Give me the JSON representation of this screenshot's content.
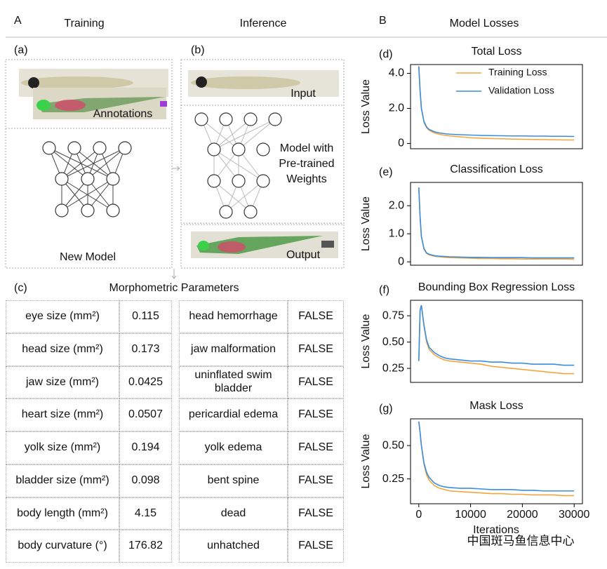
{
  "header": {
    "a": "A",
    "training": "Training",
    "inference": "Inference",
    "b": "B",
    "model_losses": "Model Losses"
  },
  "diagram": {
    "a": "(a)",
    "b": "(b)",
    "annotations": "Annotations",
    "new_model": "New Model",
    "input": "Input",
    "model_weights": [
      "Model with",
      "Pre-trained",
      "Weights"
    ],
    "output": "Output"
  },
  "table": {
    "label": "(c)",
    "title": "Morphometric Parameters",
    "rows": [
      [
        "eye size (mm²)",
        "0.115",
        "head hemorrhage",
        "FALSE"
      ],
      [
        "head size (mm²)",
        "0.173",
        "jaw malformation",
        "FALSE"
      ],
      [
        "jaw size (mm²)",
        "0.0425",
        "uninflated swim bladder",
        "FALSE"
      ],
      [
        "heart size (mm²)",
        "0.0507",
        "pericardial edema",
        "FALSE"
      ],
      [
        "yolk size (mm²)",
        "0.194",
        "yolk edema",
        "FALSE"
      ],
      [
        "bladder size (mm²)",
        "0.098",
        "bent spine",
        "FALSE"
      ],
      [
        "body length (mm²)",
        "4.15",
        "dead",
        "FALSE"
      ],
      [
        "body curvature (°)",
        "176.82",
        "unhatched",
        "FALSE"
      ]
    ]
  },
  "watermark": "中国斑马鱼信息中心",
  "chart_data": [
    {
      "type": "line",
      "panel": "(d)",
      "title": "Total Loss",
      "ylabel": "Loss Value",
      "legend": "upper right",
      "x": [
        0,
        250,
        500,
        1000,
        1500,
        2000,
        3000,
        4000,
        5000,
        6000,
        8000,
        10000,
        12000,
        14000,
        16000,
        18000,
        20000,
        22000,
        24000,
        26000,
        28000,
        30000
      ],
      "xlim": [
        -1600,
        31600
      ],
      "ylim": [
        -0.3,
        4.5
      ],
      "yticks": [
        0,
        {
          "value": 2,
          "label": "2.0"
        },
        {
          "value": 4,
          "label": "4.0"
        }
      ],
      "series": [
        {
          "name": "Training Loss",
          "color": "#f2a53c",
          "values": [
            4.4,
            3.0,
            2.0,
            1.2,
            0.9,
            0.75,
            0.6,
            0.52,
            0.47,
            0.43,
            0.38,
            0.33,
            0.3,
            0.28,
            0.27,
            0.25,
            0.24,
            0.23,
            0.22,
            0.21,
            0.2,
            0.2
          ]
        },
        {
          "name": "Validation Loss",
          "color": "#3a8ddf",
          "values": [
            4.4,
            3.0,
            2.0,
            1.25,
            0.95,
            0.8,
            0.67,
            0.6,
            0.56,
            0.53,
            0.5,
            0.48,
            0.46,
            0.45,
            0.44,
            0.43,
            0.43,
            0.42,
            0.42,
            0.41,
            0.41,
            0.4
          ]
        }
      ]
    },
    {
      "type": "line",
      "panel": "(e)",
      "title": "Classification Loss",
      "ylabel": "Loss Value",
      "x": [
        0,
        250,
        500,
        1000,
        1500,
        2000,
        3000,
        4000,
        5000,
        6000,
        8000,
        10000,
        12000,
        14000,
        16000,
        18000,
        20000,
        22000,
        24000,
        26000,
        28000,
        30000
      ],
      "xlim": [
        -1600,
        31600
      ],
      "ylim": [
        -0.12,
        2.83
      ],
      "yticks": [
        0,
        {
          "value": 1,
          "label": "1.0"
        },
        {
          "value": 2,
          "label": "2.0"
        }
      ],
      "series": [
        {
          "color": "#f2a53c",
          "values": [
            2.65,
            1.6,
            0.9,
            0.45,
            0.3,
            0.25,
            0.2,
            0.18,
            0.16,
            0.15,
            0.14,
            0.13,
            0.12,
            0.12,
            0.11,
            0.11,
            0.1,
            0.1,
            0.1,
            0.1,
            0.1,
            0.09
          ]
        },
        {
          "color": "#3a8ddf",
          "values": [
            2.65,
            1.6,
            0.9,
            0.47,
            0.32,
            0.27,
            0.22,
            0.2,
            0.19,
            0.18,
            0.17,
            0.16,
            0.16,
            0.15,
            0.15,
            0.15,
            0.15,
            0.14,
            0.14,
            0.14,
            0.14,
            0.14
          ]
        }
      ]
    },
    {
      "type": "line",
      "panel": "(f)",
      "title": "Bounding Box Regression Loss",
      "ylabel": "Loss Value",
      "x": [
        0,
        250,
        500,
        1000,
        1500,
        2000,
        3000,
        4000,
        5000,
        6000,
        8000,
        10000,
        12000,
        14000,
        16000,
        18000,
        20000,
        22000,
        24000,
        26000,
        28000,
        30000
      ],
      "xlim": [
        -1600,
        31600
      ],
      "ylim": [
        0.117,
        0.897
      ],
      "yticks": [
        0.25,
        {
          "value": 0.5,
          "label": "0.50"
        },
        0.75
      ],
      "series": [
        {
          "color": "#f2a53c",
          "values": [
            0.32,
            0.8,
            0.85,
            0.65,
            0.5,
            0.43,
            0.38,
            0.35,
            0.33,
            0.32,
            0.31,
            0.3,
            0.29,
            0.27,
            0.26,
            0.25,
            0.24,
            0.23,
            0.22,
            0.21,
            0.2,
            0.2
          ]
        },
        {
          "color": "#3a8ddf",
          "values": [
            0.32,
            0.8,
            0.85,
            0.66,
            0.52,
            0.45,
            0.4,
            0.37,
            0.35,
            0.34,
            0.33,
            0.32,
            0.32,
            0.31,
            0.31,
            0.3,
            0.3,
            0.29,
            0.29,
            0.29,
            0.28,
            0.28
          ]
        }
      ]
    },
    {
      "type": "line",
      "panel": "(g)",
      "title": "Mask Loss",
      "ylabel": "Loss Value",
      "xlabel": "Iterations",
      "x": [
        0,
        250,
        500,
        1000,
        1500,
        2000,
        3000,
        4000,
        5000,
        6000,
        8000,
        10000,
        12000,
        14000,
        16000,
        18000,
        20000,
        22000,
        24000,
        26000,
        28000,
        30000
      ],
      "xlim": [
        -1600,
        31600
      ],
      "xticks": [
        0,
        10000,
        20000,
        30000
      ],
      "ylim": [
        0.064,
        0.7
      ],
      "yticks": [
        0.25,
        {
          "value": 0.5,
          "label": "0.50"
        }
      ],
      "series": [
        {
          "color": "#f2a53c",
          "values": [
            0.68,
            0.6,
            0.5,
            0.36,
            0.28,
            0.24,
            0.2,
            0.18,
            0.17,
            0.16,
            0.155,
            0.15,
            0.145,
            0.14,
            0.14,
            0.135,
            0.135,
            0.13,
            0.13,
            0.13,
            0.125,
            0.125
          ]
        },
        {
          "color": "#3a8ddf",
          "values": [
            0.68,
            0.6,
            0.5,
            0.37,
            0.3,
            0.26,
            0.22,
            0.2,
            0.19,
            0.185,
            0.18,
            0.18,
            0.175,
            0.17,
            0.17,
            0.17,
            0.165,
            0.165,
            0.16,
            0.16,
            0.16,
            0.16
          ]
        }
      ]
    }
  ]
}
